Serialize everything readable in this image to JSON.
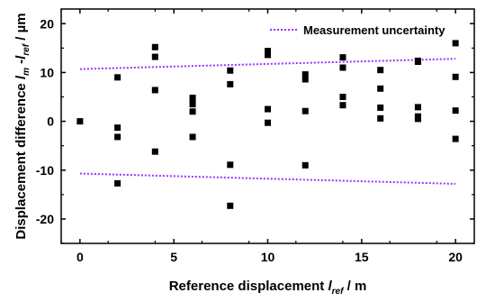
{
  "chart_data": {
    "type": "scatter",
    "xlabel": {
      "main": "Reference displacement ",
      "var": "l",
      "sub": "ref",
      "unit": " / m"
    },
    "ylabel": {
      "main": "Displacement difference ",
      "var1": "l",
      "sub1": "m",
      "mid": " -",
      "var2": "l",
      "sub2": "ref",
      "unit": " / µm"
    },
    "xlim": [
      -1,
      21
    ],
    "ylim": [
      -25,
      23
    ],
    "xticks": [
      0,
      5,
      10,
      15,
      20
    ],
    "yticks": [
      -20,
      -10,
      0,
      10,
      20
    ],
    "grid": false,
    "legend": {
      "position": "top-right",
      "label": "Measurement uncertainty"
    },
    "series": [
      {
        "marker": "square",
        "color": "#000000",
        "points": [
          [
            0,
            0
          ],
          [
            2,
            9
          ],
          [
            2,
            -1.3
          ],
          [
            2,
            -3.2
          ],
          [
            2,
            -12.7
          ],
          [
            4,
            15.2
          ],
          [
            4,
            13.2
          ],
          [
            4,
            6.4
          ],
          [
            4,
            -6.2
          ],
          [
            6,
            4.8
          ],
          [
            6,
            4
          ],
          [
            6,
            3.5
          ],
          [
            6,
            2
          ],
          [
            6,
            -3.2
          ],
          [
            8,
            10.4
          ],
          [
            8,
            7.6
          ],
          [
            8,
            -8.9
          ],
          [
            8,
            -17.3
          ],
          [
            10,
            14.4
          ],
          [
            10,
            13.6
          ],
          [
            10,
            2.5
          ],
          [
            10,
            -0.3
          ],
          [
            12,
            9.6
          ],
          [
            12,
            8.6
          ],
          [
            12,
            2.1
          ],
          [
            12,
            -9
          ],
          [
            14,
            13.1
          ],
          [
            14,
            11
          ],
          [
            14,
            5
          ],
          [
            14,
            3.3
          ],
          [
            16,
            10.5
          ],
          [
            16,
            6.7
          ],
          [
            16,
            2.8
          ],
          [
            16,
            0.6
          ],
          [
            18,
            12.4
          ],
          [
            18,
            12.2
          ],
          [
            18,
            2.9
          ],
          [
            18,
            1
          ],
          [
            18,
            0.5
          ],
          [
            20,
            16
          ],
          [
            20,
            9.1
          ],
          [
            20,
            2.2
          ],
          [
            20,
            -3.6
          ]
        ]
      }
    ],
    "uncertainty": {
      "name": "Measurement uncertainty",
      "color": "#9b30ff",
      "style": "dotted",
      "upper": [
        [
          0,
          10.7
        ],
        [
          20,
          12.8
        ]
      ],
      "lower": [
        [
          0,
          -10.7
        ],
        [
          20,
          -12.8
        ]
      ]
    }
  }
}
